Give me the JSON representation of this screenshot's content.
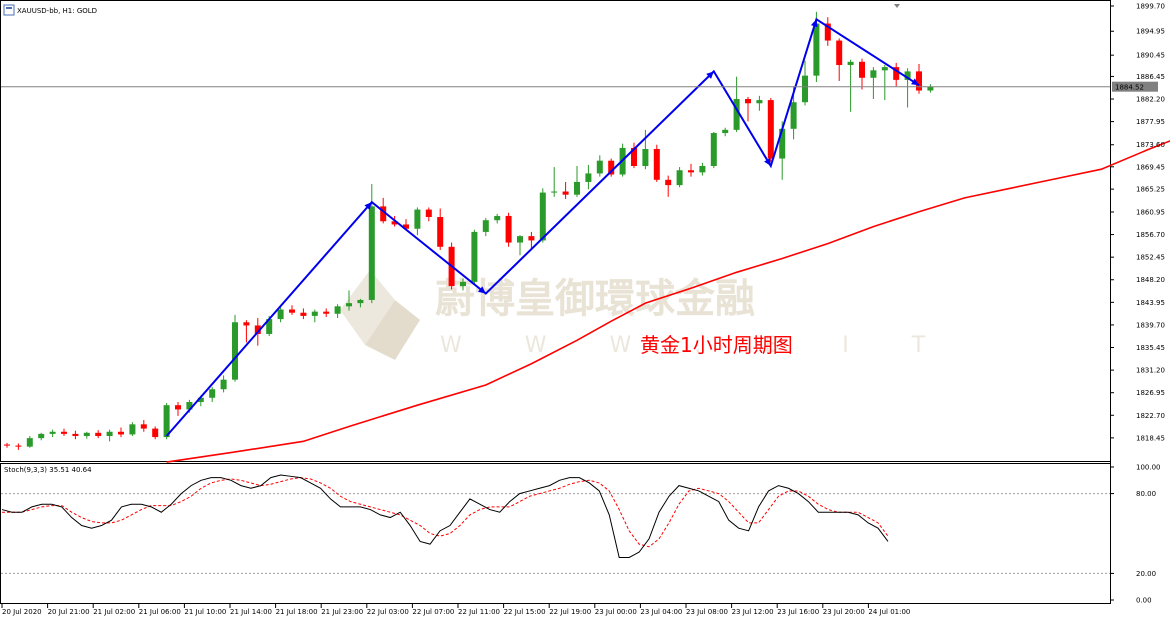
{
  "window": {
    "title": "XAUUSD-bb, H1:  GOLD",
    "menu_icon": "chart-window-icon"
  },
  "watermark": {
    "chinese": "蔚博皇御環球金融",
    "latin": "W W W . B I    T"
  },
  "annotation": "黄金1小时周期图",
  "colors": {
    "bull": "#2a9a2a",
    "bear": "#ff0000",
    "zigzag": "#0000ee",
    "ma": "#ff0000",
    "stoch_main": "#000000",
    "stoch_signal": "#ff0000",
    "price_line": "#808080"
  },
  "current_price_label": "1884.52",
  "stoch_header": "Stoch(9,3,3) 35.51 40.64",
  "chart_data": [
    {
      "type": "candlestick",
      "title": "XAUUSD-bb, H1:  GOLD",
      "ylim": [
        1814.1,
        1899.7
      ],
      "y_ticks": [
        "1899.70",
        "1894.95",
        "1890.45",
        "1886.45",
        "1882.20",
        "1877.95",
        "1873.60",
        "1869.45",
        "1865.25",
        "1860.95",
        "1856.70",
        "1852.45",
        "1848.20",
        "1843.95",
        "1839.70",
        "1835.45",
        "1831.20",
        "1826.95",
        "1822.70",
        "1818.45"
      ],
      "x_ticks": [
        "20 Jul 2020",
        "20 Jul 21:00",
        "21 Jul 02:00",
        "21 Jul 06:00",
        "21 Jul 10:00",
        "21 Jul 14:00",
        "21 Jul 18:00",
        "21 Jul 23:00",
        "22 Jul 03:00",
        "22 Jul 07:00",
        "22 Jul 11:00",
        "22 Jul 15:00",
        "22 Jul 19:00",
        "23 Jul 00:00",
        "23 Jul 04:00",
        "23 Jul 08:00",
        "23 Jul 12:00",
        "23 Jul 16:00",
        "23 Jul 20:00",
        "24 Jul 01:00"
      ],
      "candles_ohlc": [
        [
          1817.2,
          1817.5,
          1816.6,
          1817.0
        ],
        [
          1817.0,
          1817.4,
          1816.2,
          1816.8
        ],
        [
          1816.8,
          1818.8,
          1816.6,
          1818.4
        ],
        [
          1818.4,
          1819.4,
          1818.0,
          1819.2
        ],
        [
          1819.2,
          1820.0,
          1818.6,
          1819.6
        ],
        [
          1819.6,
          1820.2,
          1818.8,
          1819.2
        ],
        [
          1819.2,
          1819.8,
          1818.2,
          1818.8
        ],
        [
          1818.8,
          1819.6,
          1818.3,
          1819.4
        ],
        [
          1819.4,
          1819.9,
          1818.4,
          1818.8
        ],
        [
          1818.8,
          1820.0,
          1817.8,
          1819.6
        ],
        [
          1819.6,
          1820.4,
          1818.6,
          1819.1
        ],
        [
          1819.1,
          1821.4,
          1818.8,
          1821.0
        ],
        [
          1821.0,
          1821.8,
          1819.6,
          1820.2
        ],
        [
          1820.2,
          1820.6,
          1818.2,
          1818.6
        ],
        [
          1818.6,
          1825.0,
          1818.2,
          1824.6
        ],
        [
          1824.6,
          1825.2,
          1822.6,
          1823.8
        ],
        [
          1823.8,
          1825.6,
          1823.2,
          1825.2
        ],
        [
          1825.2,
          1826.4,
          1824.4,
          1826.0
        ],
        [
          1826.0,
          1828.0,
          1825.2,
          1827.6
        ],
        [
          1827.6,
          1830.2,
          1827.0,
          1829.4
        ],
        [
          1829.4,
          1841.6,
          1829.0,
          1840.2
        ],
        [
          1840.2,
          1840.6,
          1836.4,
          1839.6
        ],
        [
          1839.6,
          1841.0,
          1835.8,
          1838.0
        ],
        [
          1838.0,
          1841.4,
          1837.6,
          1840.8
        ],
        [
          1840.8,
          1843.0,
          1840.2,
          1842.6
        ],
        [
          1842.6,
          1843.4,
          1841.6,
          1842.0
        ],
        [
          1842.0,
          1842.8,
          1840.8,
          1841.4
        ],
        [
          1841.4,
          1842.6,
          1840.2,
          1842.2
        ],
        [
          1842.2,
          1842.8,
          1841.2,
          1841.8
        ],
        [
          1841.8,
          1843.6,
          1841.0,
          1843.2
        ],
        [
          1843.2,
          1846.2,
          1842.4,
          1843.8
        ],
        [
          1843.8,
          1844.6,
          1843.0,
          1844.4
        ],
        [
          1844.4,
          1866.2,
          1843.8,
          1862.0
        ],
        [
          1862.0,
          1863.6,
          1858.8,
          1859.2
        ],
        [
          1859.2,
          1860.2,
          1858.2,
          1858.6
        ],
        [
          1858.6,
          1859.6,
          1857.6,
          1857.8
        ],
        [
          1857.8,
          1861.8,
          1856.6,
          1861.4
        ],
        [
          1861.4,
          1861.8,
          1859.2,
          1860.0
        ],
        [
          1860.0,
          1861.6,
          1853.8,
          1854.4
        ],
        [
          1854.4,
          1855.2,
          1846.4,
          1847.0
        ],
        [
          1847.0,
          1848.4,
          1846.2,
          1847.8
        ],
        [
          1847.8,
          1857.6,
          1847.4,
          1857.2
        ],
        [
          1857.2,
          1859.8,
          1856.4,
          1859.4
        ],
        [
          1859.4,
          1860.6,
          1858.8,
          1860.2
        ],
        [
          1860.2,
          1860.8,
          1854.4,
          1855.2
        ],
        [
          1855.2,
          1856.6,
          1852.8,
          1856.4
        ],
        [
          1856.4,
          1857.2,
          1853.8,
          1855.6
        ],
        [
          1855.6,
          1865.4,
          1855.2,
          1864.6
        ],
        [
          1864.6,
          1869.4,
          1863.8,
          1864.8
        ],
        [
          1864.8,
          1866.6,
          1863.4,
          1864.2
        ],
        [
          1864.2,
          1869.6,
          1863.8,
          1866.6
        ],
        [
          1866.6,
          1869.8,
          1865.2,
          1868.2
        ],
        [
          1868.2,
          1871.6,
          1867.6,
          1870.6
        ],
        [
          1870.6,
          1871.0,
          1867.6,
          1868.0
        ],
        [
          1868.0,
          1873.8,
          1867.6,
          1873.0
        ],
        [
          1873.0,
          1874.0,
          1869.2,
          1869.6
        ],
        [
          1869.6,
          1876.4,
          1869.0,
          1872.8
        ],
        [
          1872.8,
          1873.6,
          1866.6,
          1867.0
        ],
        [
          1867.0,
          1867.8,
          1863.8,
          1866.0
        ],
        [
          1866.0,
          1869.4,
          1865.6,
          1868.8
        ],
        [
          1868.8,
          1870.0,
          1867.6,
          1868.4
        ],
        [
          1868.4,
          1870.2,
          1867.8,
          1869.6
        ],
        [
          1869.6,
          1876.0,
          1869.2,
          1875.8
        ],
        [
          1875.8,
          1876.8,
          1875.2,
          1876.4
        ],
        [
          1876.4,
          1886.4,
          1876.0,
          1882.2
        ],
        [
          1882.2,
          1882.6,
          1878.0,
          1881.4
        ],
        [
          1881.4,
          1882.8,
          1880.0,
          1882.0
        ],
        [
          1882.0,
          1882.4,
          1870.4,
          1871.0
        ],
        [
          1871.0,
          1878.0,
          1867.0,
          1876.6
        ],
        [
          1876.6,
          1884.6,
          1874.6,
          1881.6
        ],
        [
          1881.6,
          1889.4,
          1881.0,
          1886.6
        ],
        [
          1886.6,
          1898.6,
          1885.4,
          1896.4
        ],
        [
          1896.4,
          1897.6,
          1892.2,
          1893.2
        ],
        [
          1893.2,
          1893.6,
          1885.6,
          1888.6
        ],
        [
          1888.6,
          1889.6,
          1879.8,
          1889.2
        ],
        [
          1889.2,
          1889.8,
          1884.0,
          1886.2
        ],
        [
          1886.2,
          1888.2,
          1882.2,
          1887.6
        ],
        [
          1887.6,
          1888.6,
          1882.0,
          1888.2
        ],
        [
          1888.2,
          1889.0,
          1884.6,
          1885.8
        ],
        [
          1885.8,
          1888.0,
          1880.6,
          1887.4
        ],
        [
          1887.4,
          1888.8,
          1883.2,
          1883.8
        ],
        [
          1883.8,
          1885.0,
          1883.4,
          1884.5
        ]
      ],
      "ma_line": [
        [
          14,
          1813.9
        ],
        [
          20,
          1815.8
        ],
        [
          26,
          1817.8
        ],
        [
          30,
          1820.6
        ],
        [
          36,
          1824.6
        ],
        [
          42,
          1828.4
        ],
        [
          46,
          1832.4
        ],
        [
          50,
          1836.8
        ],
        [
          53,
          1840.4
        ],
        [
          56,
          1843.8
        ],
        [
          60,
          1846.6
        ],
        [
          64,
          1849.6
        ],
        [
          68,
          1852.2
        ],
        [
          72,
          1855.0
        ],
        [
          76,
          1858.2
        ],
        [
          80,
          1861.0
        ],
        [
          84,
          1863.6
        ],
        [
          88,
          1865.4
        ],
        [
          92,
          1867.2
        ],
        [
          96,
          1869.0
        ],
        [
          100,
          1872.6
        ],
        [
          104,
          1876.0
        ],
        [
          108,
          1878.4
        ],
        [
          110,
          1879.2
        ]
      ],
      "zigzag": [
        [
          14,
          1818.8
        ],
        [
          32,
          1862.8
        ],
        [
          42,
          1845.6
        ],
        [
          62,
          1887.4
        ],
        [
          67,
          1869.6
        ],
        [
          71,
          1897.2
        ],
        [
          80,
          1884.8
        ]
      ]
    },
    {
      "type": "line",
      "title": "Stoch(9,3,3) 35.51 40.64",
      "ylim": [
        0,
        100
      ],
      "y_ticks": [
        "100.00",
        "80.00",
        "20.00",
        "0.00"
      ],
      "levels": [
        80,
        20
      ],
      "series": [
        {
          "values": [
            68,
            66,
            66,
            70,
            72,
            72,
            70,
            62,
            56,
            54,
            56,
            60,
            70,
            72,
            72,
            70,
            66,
            72,
            80,
            86,
            90,
            92,
            92,
            90,
            86,
            84,
            86,
            92,
            94,
            93,
            92,
            88,
            84,
            76,
            70,
            70,
            70,
            68,
            64,
            62,
            66,
            56,
            44,
            42,
            52,
            56,
            66,
            76,
            72,
            68,
            66,
            74,
            80,
            82,
            84,
            86,
            90,
            92,
            92,
            88,
            82,
            64,
            32,
            32,
            36,
            46,
            66,
            78,
            86,
            84,
            82,
            78,
            74,
            60,
            54,
            52,
            70,
            82,
            86,
            84,
            80,
            74,
            66,
            66,
            66,
            66,
            64,
            58,
            54,
            44
          ]
        },
        {
          "values": [
            66,
            66,
            66,
            68,
            70,
            71,
            71,
            66,
            62,
            59,
            58,
            58,
            60,
            64,
            68,
            71,
            71,
            71,
            74,
            78,
            84,
            88,
            90,
            91,
            90,
            88,
            86,
            87,
            89,
            91,
            92,
            91,
            88,
            84,
            78,
            74,
            72,
            70,
            68,
            66,
            64,
            60,
            56,
            50,
            48,
            50,
            56,
            64,
            68,
            70,
            70,
            70,
            74,
            78,
            80,
            82,
            84,
            87,
            89,
            90,
            88,
            82,
            68,
            52,
            42,
            40,
            46,
            58,
            72,
            82,
            84,
            82,
            80,
            74,
            66,
            58,
            58,
            68,
            78,
            82,
            82,
            78,
            72,
            68,
            66,
            66,
            66,
            62,
            58,
            48
          ]
        }
      ]
    }
  ]
}
